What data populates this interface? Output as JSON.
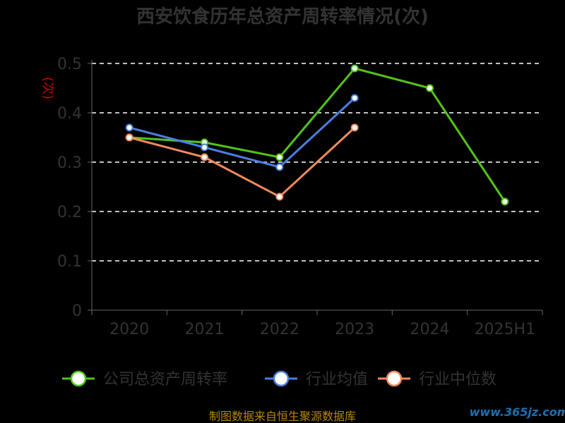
{
  "title": "西安饮食历年总资产周转率情况(次)",
  "ylabel": "(次)",
  "footer": "制图数据来自恒生聚源数据库",
  "watermark": "www.365jz.com",
  "colors": {
    "background": "#000000",
    "axis": "#666666",
    "grid": "#ffffff",
    "text": "#333333",
    "ylabel": "#cc0000"
  },
  "chart_data": {
    "type": "line",
    "title": "西安饮食历年总资产周转率情况(次)",
    "xlabel": "",
    "ylabel": "(次)",
    "categories": [
      "2020",
      "2021",
      "2022",
      "2023",
      "2024",
      "2025H1"
    ],
    "ylim": [
      0,
      0.5
    ],
    "yticks": [
      "0",
      "0.1",
      "0.2",
      "0.3",
      "0.4",
      "0.5"
    ],
    "grid": true,
    "legend_position": "bottom",
    "series": [
      {
        "name": "公司总资产周转率",
        "color": "#52c41a",
        "values": [
          0.35,
          0.34,
          0.31,
          0.49,
          0.45,
          0.22
        ]
      },
      {
        "name": "行业均值",
        "color": "#4a7fe0",
        "values": [
          0.37,
          0.33,
          0.29,
          0.43,
          null,
          null
        ]
      },
      {
        "name": "行业中位数",
        "color": "#f08a5d",
        "values": [
          0.35,
          0.31,
          0.23,
          0.37,
          null,
          null
        ]
      }
    ]
  }
}
